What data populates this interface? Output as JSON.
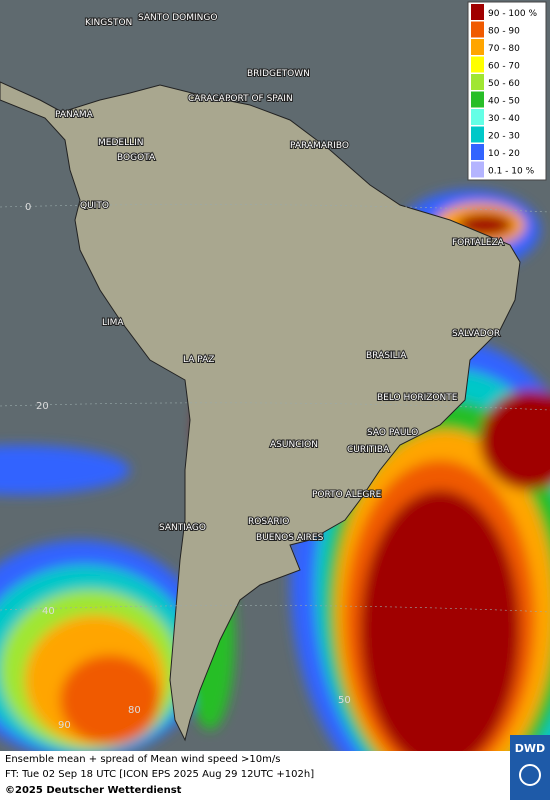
{
  "legend": {
    "items": [
      {
        "label": "90 - 100 %",
        "color": "#a00000"
      },
      {
        "label": "80 - 90",
        "color": "#f05a00"
      },
      {
        "label": "70 - 80",
        "color": "#ffa500"
      },
      {
        "label": "60 - 70",
        "color": "#ffff00"
      },
      {
        "label": "50 - 60",
        "color": "#a0e632"
      },
      {
        "label": "40 - 50",
        "color": "#28be28"
      },
      {
        "label": "30 - 40",
        "color": "#64ffe6"
      },
      {
        "label": "20 - 30",
        "color": "#00c8c8"
      },
      {
        "label": "10 - 20",
        "color": "#3264ff"
      },
      {
        "label": "0.1 - 10 %",
        "color": "#b4b4ff"
      }
    ]
  },
  "cities": [
    "KINGSTON",
    "SANTO DOMINGO",
    "BRIDGETOWN",
    "CARACAS",
    "PORT OF SPAIN",
    "PANAMA",
    "MEDELLIN",
    "BOGOTA",
    "PARAMARIBO",
    "QUITO",
    "FORTALEZA",
    "LIMA",
    "SALVADOR",
    "BRASILIA",
    "LA PAZ",
    "BELO HORIZONTE",
    "SAO PAULO",
    "ASUNCION",
    "CURITIBA",
    "PORTO ALEGRE",
    "ROSARIO",
    "SANTIAGO",
    "BUENOS AIRES"
  ],
  "grid_labels": [
    "0",
    "20",
    "40",
    "90",
    "80",
    "50"
  ],
  "footer": {
    "line1": "Ensemble mean + spread of Mean wind speed >10m/s",
    "line2": "FT: Tue 02 Sep 18 UTC [ICON EPS 2025 Aug 29 12UTC +102h]",
    "copyright": "©2025 Deutscher Wetterdienst"
  },
  "logo": "DWD"
}
